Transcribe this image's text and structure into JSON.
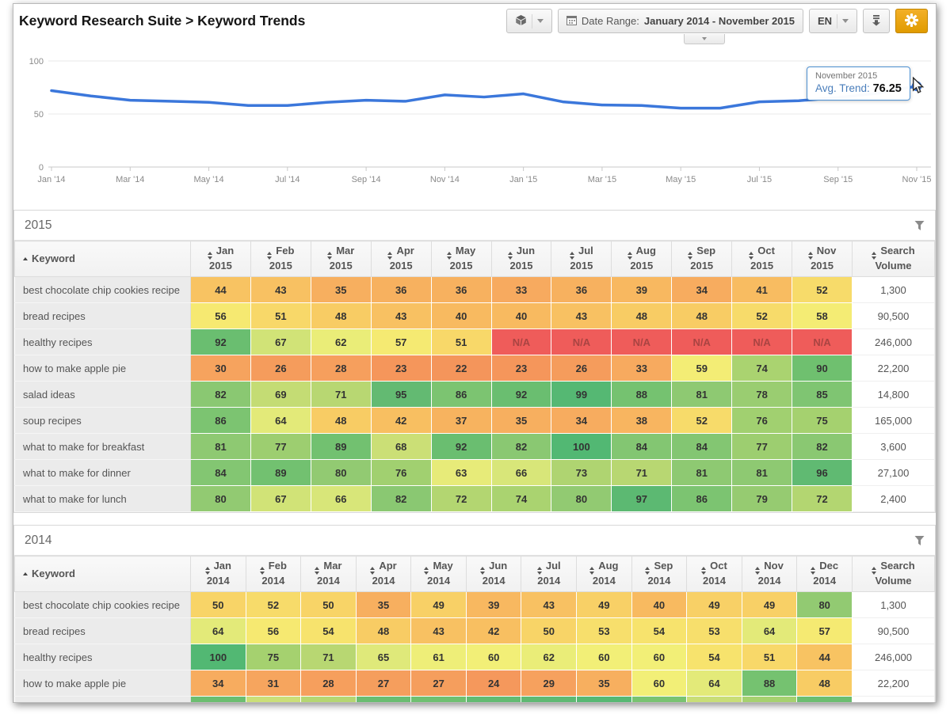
{
  "header": {
    "title": "Keyword Research Suite > Keyword Trends"
  },
  "toolbar": {
    "date_range_label": "Date Range:",
    "date_range_value": "January 2014 - November 2015",
    "language": "EN"
  },
  "chart_data": {
    "type": "line",
    "x": [
      "Jan '14",
      "Feb '14",
      "Mar '14",
      "Apr '14",
      "May '14",
      "Jun '14",
      "Jul '14",
      "Aug '14",
      "Sep '14",
      "Oct '14",
      "Nov '14",
      "Dec '14",
      "Jan '15",
      "Feb '15",
      "Mar '15",
      "Apr '15",
      "May '15",
      "Jun '15",
      "Jul '15",
      "Aug '15",
      "Sep '15",
      "Oct '15",
      "Nov '15"
    ],
    "series": [
      {
        "name": "Avg. Trend",
        "values": [
          72,
          67,
          63,
          62,
          61,
          58,
          58,
          61,
          63,
          62,
          68,
          66,
          69,
          61.5,
          58.5,
          58,
          55.5,
          55.5,
          61.5,
          62.5,
          65.5,
          69.5,
          76.25
        ]
      }
    ],
    "xtick_labels": [
      "Jan '14",
      "Mar '14",
      "May '14",
      "Jul '14",
      "Sep '14",
      "Nov '14",
      "Jan '15",
      "Mar '15",
      "May '15",
      "Jul '15",
      "Sep '15",
      "Nov '15"
    ],
    "yticks": [
      0,
      50,
      100
    ],
    "ylim": [
      0,
      100
    ],
    "line_color": "#3b77db",
    "legend_position": "none",
    "grid": "horizontal",
    "tooltip": {
      "date": "November 2015",
      "label": "Avg. Trend:",
      "value": "76.25"
    }
  },
  "heat_scale": [
    [
      0,
      "#ee5a5a"
    ],
    [
      20,
      "#f4915a"
    ],
    [
      30,
      "#f6a35e"
    ],
    [
      40,
      "#f8ba60"
    ],
    [
      48,
      "#f8cc64"
    ],
    [
      55,
      "#f7e76f"
    ],
    [
      60,
      "#f2ef77"
    ],
    [
      65,
      "#dfe97a"
    ],
    [
      70,
      "#bdd973"
    ],
    [
      75,
      "#a5d16f"
    ],
    [
      80,
      "#92ca72"
    ],
    [
      85,
      "#7fc572"
    ],
    [
      90,
      "#6fc06f"
    ],
    [
      95,
      "#63ba72"
    ],
    [
      100,
      "#52b873"
    ]
  ],
  "na_cell": {
    "text": "N/A",
    "background": "#ef5c5a",
    "text_color": "#a94442"
  },
  "tables": [
    {
      "year": "2015",
      "keyword_header": "Keyword",
      "volume_header": "Search Volume",
      "months": [
        "Jan",
        "Feb",
        "Mar",
        "Apr",
        "May",
        "Jun",
        "Jul",
        "Aug",
        "Sep",
        "Oct",
        "Nov"
      ],
      "rows": [
        {
          "keyword": "best chocolate chip cookies recipe",
          "values": [
            44,
            43,
            35,
            36,
            36,
            33,
            36,
            39,
            34,
            41,
            52
          ],
          "volume": "1,300"
        },
        {
          "keyword": "bread recipes",
          "values": [
            56,
            51,
            48,
            43,
            40,
            40,
            43,
            48,
            48,
            52,
            58
          ],
          "volume": "90,500"
        },
        {
          "keyword": "healthy recipes",
          "values": [
            92,
            67,
            62,
            57,
            51,
            "N/A",
            "N/A",
            "N/A",
            "N/A",
            "N/A",
            "N/A"
          ],
          "volume": "246,000"
        },
        {
          "keyword": "how to make apple pie",
          "values": [
            30,
            26,
            28,
            23,
            22,
            23,
            26,
            33,
            59,
            74,
            90
          ],
          "volume": "22,200"
        },
        {
          "keyword": "salad ideas",
          "values": [
            82,
            69,
            71,
            95,
            86,
            92,
            99,
            88,
            81,
            78,
            85
          ],
          "volume": "14,800"
        },
        {
          "keyword": "soup recipes",
          "values": [
            86,
            64,
            48,
            42,
            37,
            35,
            34,
            38,
            52,
            76,
            75
          ],
          "volume": "165,000"
        },
        {
          "keyword": "what to make for breakfast",
          "values": [
            81,
            77,
            89,
            68,
            92,
            82,
            100,
            84,
            84,
            77,
            82
          ],
          "volume": "3,600"
        },
        {
          "keyword": "what to make for dinner",
          "values": [
            84,
            89,
            80,
            76,
            63,
            66,
            73,
            71,
            81,
            81,
            96
          ],
          "volume": "27,100"
        },
        {
          "keyword": "what to make for lunch",
          "values": [
            80,
            67,
            66,
            82,
            72,
            74,
            80,
            97,
            86,
            79,
            72
          ],
          "volume": "2,400"
        }
      ]
    },
    {
      "year": "2014",
      "keyword_header": "Keyword",
      "volume_header": "Search Volume",
      "months": [
        "Jan",
        "Feb",
        "Mar",
        "Apr",
        "May",
        "Jun",
        "Jul",
        "Aug",
        "Sep",
        "Oct",
        "Nov",
        "Dec"
      ],
      "rows": [
        {
          "keyword": "best chocolate chip cookies recipe",
          "values": [
            50,
            52,
            50,
            35,
            49,
            39,
            43,
            49,
            40,
            49,
            49,
            80
          ],
          "volume": "1,300"
        },
        {
          "keyword": "bread recipes",
          "values": [
            64,
            56,
            54,
            48,
            43,
            42,
            50,
            53,
            54,
            53,
            64,
            57
          ],
          "volume": "90,500"
        },
        {
          "keyword": "healthy recipes",
          "values": [
            100,
            75,
            71,
            65,
            61,
            60,
            62,
            60,
            60,
            54,
            51,
            44
          ],
          "volume": "246,000"
        },
        {
          "keyword": "how to make apple pie",
          "values": [
            34,
            31,
            28,
            27,
            27,
            24,
            29,
            35,
            60,
            64,
            88,
            48
          ],
          "volume": "22,200"
        }
      ],
      "partial_row_colors": [
        "#6cbe70",
        "#cbdf78",
        "#b5d672",
        "#6abd71",
        "#6fc071",
        "#63bb72",
        "#5fb973",
        "#57b873",
        "#79c371",
        "#c9de77",
        "#a6d16f",
        "#6cbe70"
      ]
    }
  ]
}
